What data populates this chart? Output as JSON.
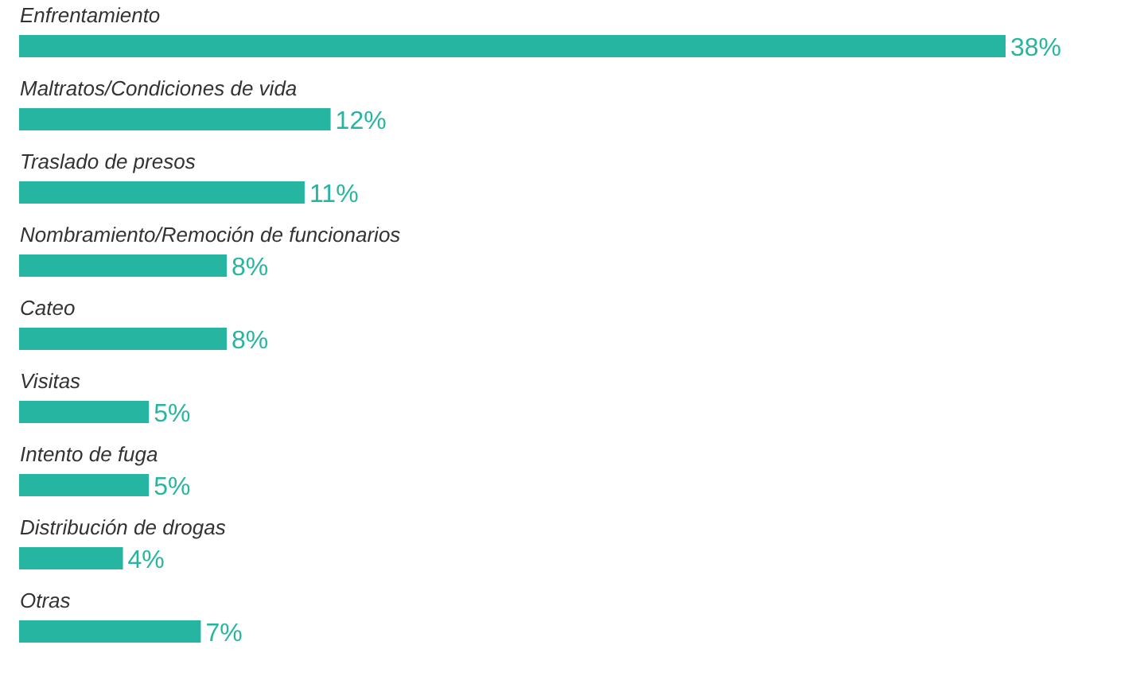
{
  "chart_data": {
    "type": "bar",
    "orientation": "horizontal",
    "categories": [
      "Enfrentamiento",
      "Maltratos/Condiciones de vida",
      "Traslado de presos",
      "Nombramiento/Remoción de funcionarios",
      "Cateo",
      "Visitas",
      "Intento de fuga",
      "Distribución de drogas",
      "Otras"
    ],
    "values": [
      38,
      12,
      11,
      8,
      8,
      5,
      5,
      4,
      7
    ],
    "value_labels": [
      "38%",
      "12%",
      "11%",
      "8%",
      "8%",
      "5%",
      "5%",
      "4%",
      "7%"
    ],
    "color": "#26b5a0"
  }
}
